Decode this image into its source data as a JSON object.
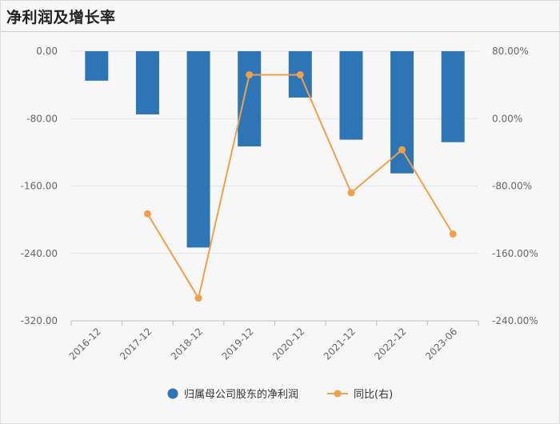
{
  "title": "净利润及增长率",
  "chart_data": {
    "type": "bar+line",
    "categories": [
      "2016-12",
      "2017-12",
      "2018-12",
      "2019-12",
      "2020-12",
      "2021-12",
      "2022-12",
      "2023-06"
    ],
    "series": [
      {
        "name": "归属母公司股东的净利润",
        "type": "bar",
        "axis": "left",
        "color": "#2e75b5",
        "values": [
          -35,
          -75,
          -233,
          -113,
          -55,
          -105,
          -145,
          -108
        ]
      },
      {
        "name": "同比(右)",
        "type": "line",
        "axis": "right",
        "color": "#f0a04b",
        "values": [
          null,
          -113,
          -213,
          52,
          52,
          -88,
          -37,
          -137
        ]
      }
    ],
    "y_left": {
      "min": -320,
      "max": 0,
      "ticks": [
        0,
        -80,
        -160,
        -240,
        -320
      ],
      "tick_labels": [
        "0.00",
        "-80.00",
        "-160.00",
        "-240.00",
        "-320.00"
      ]
    },
    "y_right": {
      "min": -240,
      "max": 80,
      "ticks": [
        80,
        0,
        -80,
        -160,
        -240
      ],
      "tick_labels": [
        "80.00%",
        "0.00%",
        "-80.00%",
        "-160.00%",
        "-240.00%"
      ]
    },
    "grid": true,
    "legend_position": "bottom"
  }
}
